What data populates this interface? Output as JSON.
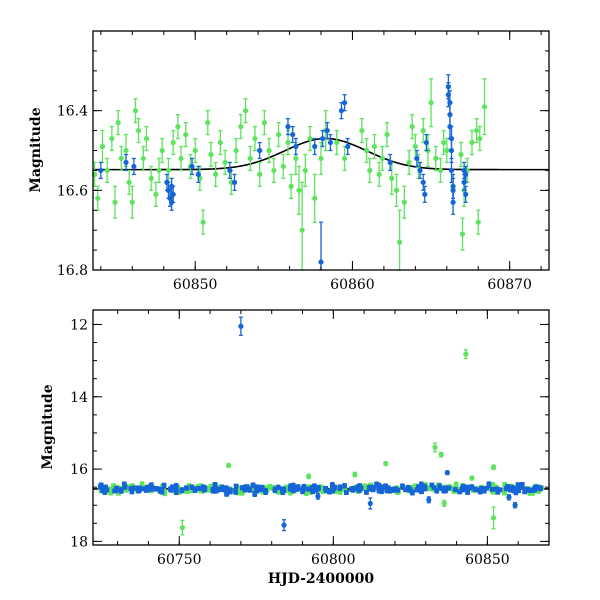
{
  "colors": {
    "groupA": "#5de35d",
    "groupB": "#1565d8",
    "model": "#000000"
  },
  "chart_data": [
    {
      "type": "scatter",
      "title": "",
      "xlabel": "",
      "ylabel": "Magnitude",
      "xlim": [
        60843.5,
        60872.5
      ],
      "ylim": [
        16.8,
        16.2
      ],
      "y_inverted": true,
      "grid": false,
      "x_ticks": [
        "60850",
        "60860",
        "60870"
      ],
      "x_tick_values": [
        60850,
        60860,
        60870
      ],
      "y_ticks": [
        "16.4",
        "16.6",
        "16.8"
      ],
      "y_tick_values": [
        16.4,
        16.6,
        16.8
      ],
      "model_curve": {
        "baseline": 16.548,
        "peak_x": 60858.3,
        "amplitude": 0.078,
        "width": 2.6
      },
      "series": [
        {
          "color_key": "groupA",
          "points": [
            [
              60843.6,
              16.56,
              0.03
            ],
            [
              60843.8,
              16.62,
              0.03
            ],
            [
              60844.1,
              16.49,
              0.04
            ],
            [
              60844.4,
              16.55,
              0.03
            ],
            [
              60844.7,
              16.47,
              0.03
            ],
            [
              60844.9,
              16.63,
              0.04
            ],
            [
              60845.1,
              16.43,
              0.03
            ],
            [
              60845.3,
              16.52,
              0.03
            ],
            [
              60845.6,
              16.5,
              0.04
            ],
            [
              60845.8,
              16.58,
              0.03
            ],
            [
              60846.0,
              16.63,
              0.04
            ],
            [
              60846.2,
              16.4,
              0.03
            ],
            [
              60846.4,
              16.45,
              0.03
            ],
            [
              60846.7,
              16.52,
              0.03
            ],
            [
              60846.9,
              16.47,
              0.03
            ],
            [
              60847.2,
              16.57,
              0.03
            ],
            [
              60847.5,
              16.61,
              0.03
            ],
            [
              60847.7,
              16.55,
              0.03
            ],
            [
              60847.9,
              16.5,
              0.03
            ],
            [
              60848.3,
              16.55,
              0.03
            ],
            [
              60848.6,
              16.48,
              0.03
            ],
            [
              60848.9,
              16.44,
              0.03
            ],
            [
              60849.1,
              16.52,
              0.03
            ],
            [
              60849.4,
              16.46,
              0.03
            ],
            [
              60849.7,
              16.54,
              0.03
            ],
            [
              60850.0,
              16.5,
              0.03
            ],
            [
              60850.3,
              16.57,
              0.03
            ],
            [
              60850.5,
              16.68,
              0.03
            ],
            [
              60850.8,
              16.43,
              0.03
            ],
            [
              60851.0,
              16.51,
              0.03
            ],
            [
              60851.3,
              16.56,
              0.03
            ],
            [
              60851.6,
              16.48,
              0.03
            ],
            [
              60851.9,
              16.53,
              0.03
            ],
            [
              60852.3,
              16.58,
              0.03
            ],
            [
              60852.6,
              16.5,
              0.03
            ],
            [
              60852.9,
              16.44,
              0.03
            ],
            [
              60853.2,
              16.4,
              0.03
            ],
            [
              60853.5,
              16.52,
              0.03
            ],
            [
              60853.8,
              16.47,
              0.03
            ],
            [
              60854.1,
              16.56,
              0.03
            ],
            [
              60854.4,
              16.43,
              0.03
            ],
            [
              60854.7,
              16.5,
              0.03
            ],
            [
              60855.0,
              16.55,
              0.03
            ],
            [
              60855.3,
              16.46,
              0.03
            ],
            [
              60855.6,
              16.54,
              0.03
            ],
            [
              60855.9,
              16.48,
              0.03
            ],
            [
              60856.1,
              16.59,
              0.03
            ],
            [
              60856.4,
              16.52,
              0.04
            ],
            [
              60856.6,
              16.6,
              0.06
            ],
            [
              60856.8,
              16.7,
              0.12
            ],
            [
              60857.0,
              16.55,
              0.04
            ],
            [
              60857.3,
              16.47,
              0.03
            ],
            [
              60857.6,
              16.62,
              0.06
            ],
            [
              60858.0,
              16.52,
              0.04
            ],
            [
              60858.3,
              16.45,
              0.05
            ],
            [
              60859.0,
              16.48,
              0.03
            ],
            [
              60859.5,
              16.52,
              0.03
            ],
            [
              60860.6,
              16.45,
              0.03
            ],
            [
              60860.9,
              16.5,
              0.03
            ],
            [
              60861.1,
              16.55,
              0.03
            ],
            [
              60861.4,
              16.49,
              0.03
            ],
            [
              60861.7,
              16.56,
              0.03
            ],
            [
              60861.9,
              16.52,
              0.03
            ],
            [
              60862.2,
              16.46,
              0.03
            ],
            [
              60862.5,
              16.57,
              0.04
            ],
            [
              60862.8,
              16.6,
              0.04
            ],
            [
              60863.0,
              16.73,
              0.08
            ],
            [
              60863.3,
              16.63,
              0.04
            ],
            [
              60863.6,
              16.53,
              0.03
            ],
            [
              60863.8,
              16.44,
              0.03
            ],
            [
              60864.0,
              16.49,
              0.03
            ],
            [
              60864.2,
              16.54,
              0.03
            ],
            [
              60864.5,
              16.45,
              0.03
            ],
            [
              60864.8,
              16.5,
              0.04
            ],
            [
              60865.0,
              16.38,
              0.06
            ],
            [
              60865.3,
              16.52,
              0.03
            ],
            [
              60865.6,
              16.55,
              0.03
            ],
            [
              60865.8,
              16.48,
              0.03
            ],
            [
              60866.0,
              16.5,
              0.03
            ],
            [
              60866.9,
              16.51,
              0.03
            ],
            [
              60867.1,
              16.6,
              0.04
            ],
            [
              60867.3,
              16.55,
              0.03
            ],
            [
              60867.6,
              16.48,
              0.03
            ],
            [
              60867.9,
              16.45,
              0.03
            ],
            [
              60868.1,
              16.47,
              0.03
            ],
            [
              60868.4,
              16.39,
              0.07
            ],
            [
              60867.0,
              16.71,
              0.04
            ],
            [
              60868.0,
              16.68,
              0.03
            ]
          ]
        },
        {
          "color_key": "groupB",
          "points": [
            [
              60844.0,
              16.55,
              0.02
            ],
            [
              60845.6,
              16.53,
              0.02
            ],
            [
              60846.1,
              16.54,
              0.02
            ],
            [
              60848.2,
              16.58,
              0.02
            ],
            [
              60848.3,
              16.6,
              0.02
            ],
            [
              60848.4,
              16.62,
              0.02
            ],
            [
              60848.5,
              16.59,
              0.02
            ],
            [
              60848.6,
              16.61,
              0.02
            ],
            [
              60848.5,
              16.63,
              0.02
            ],
            [
              60849.8,
              16.54,
              0.02
            ],
            [
              60850.2,
              16.56,
              0.02
            ],
            [
              60852.2,
              16.55,
              0.02
            ],
            [
              60852.5,
              16.58,
              0.02
            ],
            [
              60854.1,
              16.5,
              0.02
            ],
            [
              60855.9,
              16.44,
              0.02
            ],
            [
              60856.2,
              16.46,
              0.02
            ],
            [
              60856.4,
              16.49,
              0.02
            ],
            [
              60857.6,
              16.49,
              0.02
            ],
            [
              60858.1,
              16.47,
              0.02
            ],
            [
              60858.4,
              16.45,
              0.02
            ],
            [
              60858.6,
              16.48,
              0.02
            ],
            [
              60858.0,
              16.78,
              0.1
            ],
            [
              60859.3,
              16.4,
              0.02
            ],
            [
              60859.5,
              16.38,
              0.02
            ],
            [
              60859.7,
              16.49,
              0.02
            ],
            [
              60862.4,
              16.53,
              0.02
            ],
            [
              60864.1,
              16.52,
              0.02
            ],
            [
              60864.3,
              16.55,
              0.02
            ],
            [
              60864.5,
              16.58,
              0.02
            ],
            [
              60864.6,
              16.61,
              0.02
            ],
            [
              60864.7,
              16.48,
              0.02
            ],
            [
              60866.1,
              16.34,
              0.03
            ],
            [
              60866.1,
              16.36,
              0.03
            ],
            [
              60866.2,
              16.38,
              0.03
            ],
            [
              60866.2,
              16.41,
              0.03
            ],
            [
              60866.2,
              16.44,
              0.03
            ],
            [
              60866.3,
              16.47,
              0.03
            ],
            [
              60866.3,
              16.5,
              0.03
            ],
            [
              60866.3,
              16.55,
              0.03
            ],
            [
              60866.4,
              16.6,
              0.03
            ],
            [
              60866.4,
              16.63,
              0.03
            ],
            [
              60866.4,
              16.59,
              0.03
            ],
            [
              60867.1,
              16.55,
              0.02
            ],
            [
              60867.1,
              16.58,
              0.02
            ],
            [
              60867.2,
              16.61,
              0.02
            ],
            [
              60867.2,
              16.56,
              0.02
            ]
          ]
        }
      ]
    },
    {
      "type": "scatter",
      "title": "",
      "xlabel": "HJD-2400000",
      "ylabel": "Magnitude",
      "xlim": [
        60722,
        60870
      ],
      "ylim": [
        18.1,
        11.6
      ],
      "y_inverted": true,
      "grid": false,
      "x_ticks": [
        "60750",
        "60800",
        "60850"
      ],
      "x_tick_values": [
        60750,
        60800,
        60850
      ],
      "y_ticks": [
        "12",
        "14",
        "16",
        "18"
      ],
      "y_tick_values": [
        12,
        14,
        16,
        18
      ],
      "reference_line": 16.55,
      "outliers": {
        "groupA": [
          [
            60751,
            17.62,
            0.2
          ],
          [
            60766,
            15.9,
            0.05
          ],
          [
            60792,
            16.2,
            0.06
          ],
          [
            60807,
            16.15,
            0.06
          ],
          [
            60817,
            15.85,
            0.05
          ],
          [
            60833,
            15.4,
            0.12
          ],
          [
            60835,
            15.6,
            0.06
          ],
          [
            60843,
            12.82,
            0.12
          ],
          [
            60852,
            15.95,
            0.06
          ],
          [
            60852,
            17.35,
            0.3
          ],
          [
            60845,
            16.25,
            0.05
          ],
          [
            60836,
            16.95,
            0.08
          ]
        ],
        "groupB": [
          [
            60770,
            12.05,
            0.25
          ],
          [
            60784,
            17.55,
            0.15
          ],
          [
            60812,
            16.95,
            0.15
          ],
          [
            60837,
            16.1,
            0.05
          ],
          [
            60859,
            17.0,
            0.07
          ],
          [
            60857,
            16.78,
            0.07
          ],
          [
            60831,
            16.85,
            0.08
          ],
          [
            60795,
            16.75,
            0.08
          ]
        ]
      },
      "bulk": {
        "x_range": [
          60724,
          60868
        ],
        "baseline": 16.55,
        "scatter": 0.09,
        "count_groupA": 200,
        "count_groupB": 210
      }
    }
  ]
}
